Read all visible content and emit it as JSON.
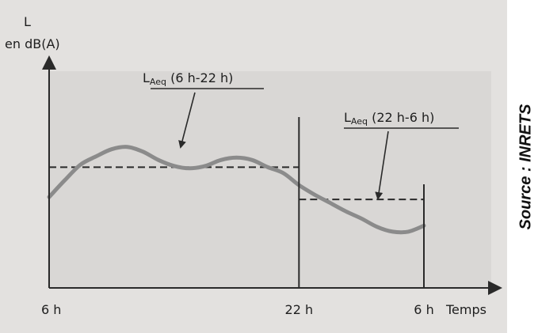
{
  "chart_data": {
    "type": "line",
    "ylabel_line1": "L",
    "ylabel_line2": "en dB(A)",
    "xlabel": "Temps",
    "x_ticks": [
      {
        "label": "6 h",
        "value": 6
      },
      {
        "label": "22 h",
        "value": 22
      },
      {
        "label": "6 h",
        "value": 30
      }
    ],
    "xlim": [
      6,
      30
    ],
    "ylim": [
      0,
      100
    ],
    "series": [
      {
        "x": [
          6,
          7,
          8,
          9,
          10,
          11,
          12,
          13,
          14,
          15,
          16,
          17,
          18,
          19,
          20,
          21,
          22,
          23,
          24,
          25,
          26,
          27,
          28,
          29,
          30
        ],
        "values": [
          41,
          55,
          68,
          75,
          81,
          83,
          79,
          72,
          67,
          65,
          67,
          72,
          74,
          72,
          66,
          61,
          51,
          43,
          36,
          29,
          23,
          16,
          12,
          12,
          17
        ]
      }
    ],
    "references": [
      {
        "label_main": "L",
        "label_sub": "Aeq",
        "label_rest": " (6 h-22 h)",
        "x_start": 6,
        "x_end": 22,
        "value": 66
      },
      {
        "label_main": "L",
        "label_sub": "Aeq",
        "label_rest": " (22 h-6 h)",
        "x_start": 22,
        "x_end": 30,
        "value": 39
      }
    ],
    "colors": {
      "curve": "#8b8b8b",
      "background": "#e3e1df",
      "plot_area": "#d9d7d5",
      "axis": "#2a2a2a"
    }
  },
  "source": {
    "text": "Source : INRETS"
  }
}
